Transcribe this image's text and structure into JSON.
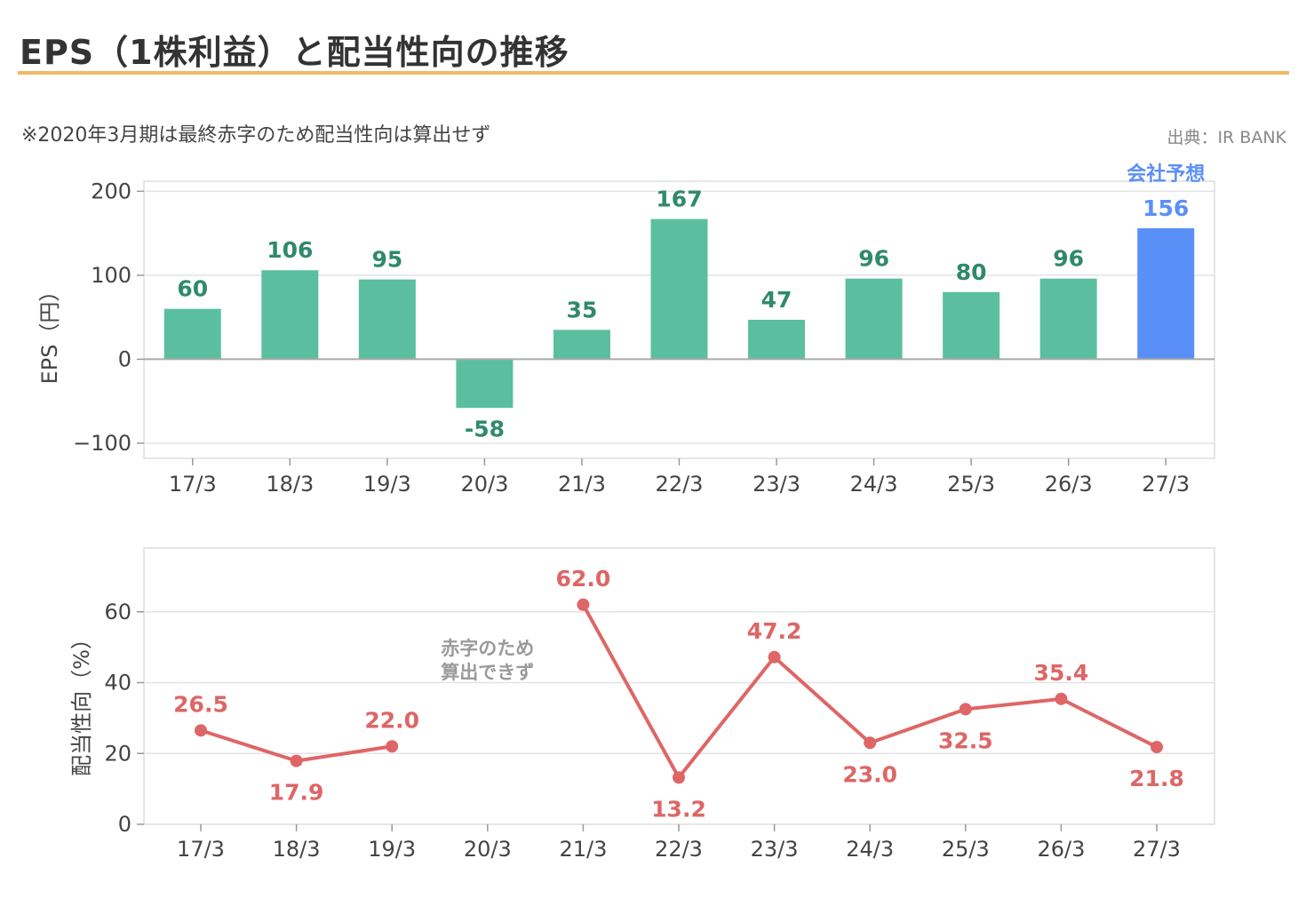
{
  "header": {
    "title": "EPS（1株利益）と配当性向の推移",
    "note": "※2020年3月期は最終赤字のため配当性向は算出せず",
    "source": "出典：IR BANK"
  },
  "colors": {
    "bar": "#5bbf9f",
    "bar_forecast": "#5a8ff7",
    "bar_label": "#2f8a69",
    "line": "#de6666",
    "title_rule": "#f0b862"
  },
  "chart_data": [
    {
      "type": "bar",
      "categories": [
        "17/3",
        "18/3",
        "19/3",
        "20/3",
        "21/3",
        "22/3",
        "23/3",
        "24/3",
        "25/3",
        "26/3",
        "27/3"
      ],
      "values": [
        60,
        106,
        95,
        -58,
        35,
        167,
        47,
        96,
        80,
        96,
        156
      ],
      "value_labels": [
        "60",
        "106",
        "95",
        "-58",
        "35",
        "167",
        "47",
        "96",
        "80",
        "96",
        "156"
      ],
      "forecast_index": 10,
      "forecast_label": "会社予想",
      "ylabel": "EPS（円）",
      "ylim": [
        -118,
        212
      ],
      "yticks": [
        200,
        100,
        0,
        -100
      ],
      "ytick_labels": [
        "200",
        "100",
        "0",
        "−100"
      ],
      "grid": true
    },
    {
      "type": "line",
      "categories": [
        "17/3",
        "18/3",
        "19/3",
        "20/3",
        "21/3",
        "22/3",
        "23/3",
        "24/3",
        "25/3",
        "26/3",
        "27/3"
      ],
      "values": [
        26.5,
        17.9,
        22.0,
        null,
        62.0,
        13.2,
        47.2,
        23.0,
        32.5,
        35.4,
        21.8
      ],
      "value_labels": [
        "26.5",
        "17.9",
        "22.0",
        "",
        "62.0",
        "13.2",
        "47.2",
        "23.0",
        "32.5",
        "35.4",
        "21.8"
      ],
      "label_positions": [
        "above",
        "below",
        "above",
        "",
        "above",
        "below",
        "above",
        "below",
        "below",
        "above",
        "below"
      ],
      "annotation": [
        "赤字のため",
        "算出できず"
      ],
      "ylabel": "配当性向（%）",
      "ylim": [
        0,
        78
      ],
      "yticks": [
        60,
        40,
        20,
        0
      ],
      "ytick_labels": [
        "60",
        "40",
        "20",
        "0"
      ],
      "grid": true
    }
  ]
}
